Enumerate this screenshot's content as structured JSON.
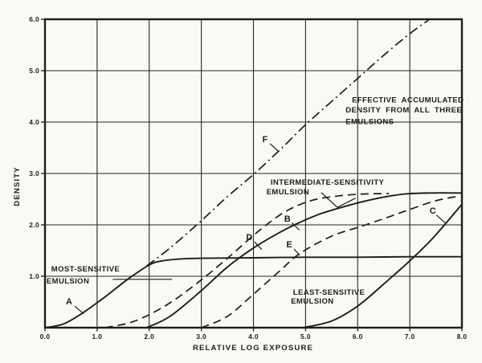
{
  "figure": {
    "paper_color": "#f9f9f6",
    "ink_color": "#1d1d1d",
    "grid_color": "#262626"
  },
  "chart_data": {
    "type": "line",
    "title": "",
    "xlabel": "RELATIVE LOG EXPOSURE",
    "ylabel": "DENSITY",
    "xlim": [
      0,
      8
    ],
    "ylim": [
      0,
      6
    ],
    "grid": true,
    "legend_position": "none",
    "x_ticks": {
      "values": [
        0,
        1,
        2,
        3,
        4,
        5,
        6,
        7,
        8
      ],
      "labels": [
        "0.0",
        "1.0",
        "2.0",
        "3.0",
        "4.0",
        "5.0",
        "6.0",
        "7.0",
        "8.0"
      ]
    },
    "y_ticks": {
      "values": [
        1,
        2,
        3,
        4,
        5,
        6
      ],
      "labels": [
        "1.0",
        "2.0",
        "3.0",
        "4.0",
        "5.0",
        "6.0"
      ]
    },
    "series": [
      {
        "label": "A",
        "line_style": "solid",
        "points": [
          [
            0,
            0
          ],
          [
            0.35,
            0.07
          ],
          [
            0.7,
            0.27
          ],
          [
            1.1,
            0.56
          ],
          [
            1.6,
            0.95
          ],
          [
            2.0,
            1.22
          ],
          [
            2.2,
            1.29
          ],
          [
            2.5,
            1.33
          ],
          [
            3.0,
            1.35
          ],
          [
            4.0,
            1.36
          ],
          [
            5.0,
            1.37
          ],
          [
            6.0,
            1.37
          ],
          [
            7.0,
            1.38
          ],
          [
            8.0,
            1.38
          ]
        ]
      },
      {
        "label": "B",
        "line_style": "solid",
        "points": [
          [
            1.95,
            0
          ],
          [
            2.4,
            0.22
          ],
          [
            3.0,
            0.72
          ],
          [
            3.5,
            1.18
          ],
          [
            4.0,
            1.55
          ],
          [
            4.5,
            1.85
          ],
          [
            4.85,
            2.03
          ],
          [
            5.3,
            2.22
          ],
          [
            5.9,
            2.4
          ],
          [
            6.4,
            2.52
          ],
          [
            6.9,
            2.6
          ],
          [
            7.4,
            2.62
          ],
          [
            8.0,
            2.62
          ]
        ]
      },
      {
        "label": "C",
        "line_style": "solid",
        "points": [
          [
            4.95,
            0
          ],
          [
            5.5,
            0.13
          ],
          [
            6.0,
            0.42
          ],
          [
            6.5,
            0.85
          ],
          [
            7.0,
            1.3
          ],
          [
            7.45,
            1.75
          ],
          [
            8.0,
            2.4
          ]
        ]
      },
      {
        "label": "D",
        "line_style": "dashed",
        "points": [
          [
            1.15,
            0
          ],
          [
            1.7,
            0.12
          ],
          [
            2.3,
            0.42
          ],
          [
            2.9,
            0.85
          ],
          [
            3.5,
            1.35
          ],
          [
            4.1,
            1.88
          ],
          [
            4.6,
            2.25
          ],
          [
            5.1,
            2.47
          ],
          [
            5.6,
            2.56
          ],
          [
            6.1,
            2.6
          ],
          [
            6.6,
            2.61
          ]
        ]
      },
      {
        "label": "E",
        "line_style": "dashed",
        "points": [
          [
            3.0,
            0
          ],
          [
            3.5,
            0.22
          ],
          [
            4.0,
            0.65
          ],
          [
            4.5,
            1.1
          ],
          [
            4.9,
            1.45
          ],
          [
            5.5,
            1.78
          ],
          [
            6.0,
            1.95
          ],
          [
            6.5,
            2.12
          ],
          [
            7.0,
            2.3
          ],
          [
            7.5,
            2.47
          ],
          [
            7.95,
            2.56
          ]
        ]
      },
      {
        "label": "F",
        "line_style": "dashdot",
        "points": [
          [
            1.95,
            1.2
          ],
          [
            2.4,
            1.55
          ],
          [
            3.0,
            2.08
          ],
          [
            3.5,
            2.55
          ],
          [
            4.0,
            2.98
          ],
          [
            4.5,
            3.45
          ],
          [
            5.0,
            3.95
          ],
          [
            5.5,
            4.4
          ],
          [
            6.0,
            4.85
          ],
          [
            6.5,
            5.3
          ],
          [
            7.0,
            5.72
          ],
          [
            7.38,
            6.0
          ]
        ]
      }
    ],
    "annotations": [
      {
        "id": "curve-letter-a",
        "kind": "letter",
        "lines": [
          {
            "text": "A",
            "x": 0.4,
            "y": 0.45
          }
        ],
        "leaders": [
          [
            [
              0.57,
              0.42
            ],
            [
              0.74,
              0.27
            ]
          ]
        ]
      },
      {
        "id": "curve-letter-b",
        "kind": "letter",
        "lines": [
          {
            "text": "B",
            "x": 4.59,
            "y": 2.06
          }
        ],
        "leaders": [
          [
            [
              4.74,
              2.04
            ],
            [
              4.88,
              1.9
            ]
          ]
        ]
      },
      {
        "id": "curve-letter-c",
        "kind": "letter",
        "lines": [
          {
            "text": "C",
            "x": 7.38,
            "y": 2.22
          }
        ],
        "leaders": [
          [
            [
              7.51,
              2.19
            ],
            [
              7.68,
              2.04
            ]
          ]
        ]
      },
      {
        "id": "curve-letter-d",
        "kind": "letter",
        "lines": [
          {
            "text": "D",
            "x": 3.86,
            "y": 1.7
          }
        ],
        "leaders": [
          [
            [
              4.02,
              1.67
            ],
            [
              4.16,
              1.52
            ]
          ]
        ]
      },
      {
        "id": "curve-letter-e",
        "kind": "letter",
        "lines": [
          {
            "text": "E",
            "x": 4.63,
            "y": 1.56
          }
        ],
        "leaders": [
          [
            [
              4.78,
              1.53
            ],
            [
              4.89,
              1.41
            ]
          ]
        ]
      },
      {
        "id": "curve-letter-f",
        "kind": "letter",
        "lines": [
          {
            "text": "F",
            "x": 4.17,
            "y": 3.61
          }
        ],
        "leaders": [
          [
            [
              4.32,
              3.58
            ],
            [
              4.48,
              3.43
            ]
          ]
        ]
      },
      {
        "id": "most-sensitive-emulsion",
        "kind": "label",
        "lines": [
          {
            "text": "MOST-SENSITIVE",
            "x": 0.12,
            "y": 1.09
          },
          {
            "text": "EMULSION",
            "x": 0.03,
            "y": 0.86
          }
        ],
        "leaders": [
          [
            [
              1.3,
              0.94
            ],
            [
              2.44,
              0.94
            ]
          ]
        ]
      },
      {
        "id": "intermediate-sensitivity-emulsion",
        "kind": "label",
        "lines": [
          {
            "text": "INTERMEDIATE-SENSITIVITY",
            "x": 4.33,
            "y": 2.78
          },
          {
            "text": "EMULSION",
            "x": 4.25,
            "y": 2.59
          }
        ],
        "leaders": [
          [
            [
              5.3,
              2.63
            ],
            [
              5.61,
              2.34
            ]
          ],
          [
            [
              5.61,
              2.34
            ],
            [
              5.96,
              2.52
            ]
          ]
        ]
      },
      {
        "id": "least-sensitive-emulsion",
        "kind": "label",
        "lines": [
          {
            "text": "LEAST-SENSITIVE",
            "x": 4.76,
            "y": 0.64
          },
          {
            "text": "EMULSION",
            "x": 4.72,
            "y": 0.47
          }
        ],
        "leaders": []
      },
      {
        "id": "effective-accumulated-density",
        "kind": "label",
        "lines": [
          {
            "text": "EFFECTIVE ACCUMULATED",
            "x": 5.89,
            "y": 4.38
          },
          {
            "text": "DENSITY FROM ALL THREE",
            "x": 5.77,
            "y": 4.19
          },
          {
            "text": "EMULSIONS",
            "x": 5.77,
            "y": 3.96
          }
        ],
        "leaders": []
      }
    ]
  }
}
